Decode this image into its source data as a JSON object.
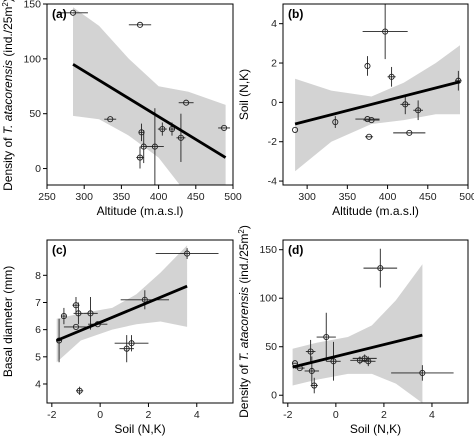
{
  "chart_data": [
    {
      "panel": "(a)",
      "type": "scatter",
      "xlabel": "Altitude (m.a.s.l)",
      "ylabel_parts": [
        "Density of ",
        "T. atacorensis",
        " (ind./25m",
        "2",
        ")"
      ],
      "xlim": [
        250,
        500
      ],
      "ylim": [
        -15,
        150
      ],
      "xticks": [
        250,
        300,
        350,
        400,
        450,
        500
      ],
      "yticks": [
        0,
        50,
        100,
        150
      ],
      "grid": false,
      "points": [
        {
          "x": 285,
          "y": 142,
          "xerr": 20,
          "yerr": 0
        },
        {
          "x": 375,
          "y": 131,
          "xerr": 15,
          "yerr": 0
        },
        {
          "x": 335,
          "y": 45,
          "xerr": 8,
          "yerr": 0
        },
        {
          "x": 437,
          "y": 60,
          "xerr": 10,
          "yerr": 0
        },
        {
          "x": 488,
          "y": 37,
          "xerr": 8,
          "yerr": 0
        },
        {
          "x": 375,
          "y": 10,
          "xerr": 5,
          "yerr": 10
        },
        {
          "x": 377,
          "y": 33,
          "xerr": 4,
          "yerr": 8
        },
        {
          "x": 380,
          "y": 20,
          "xerr": 4,
          "yerr": 15
        },
        {
          "x": 395,
          "y": 20,
          "xerr": 12,
          "yerr": 35
        },
        {
          "x": 405,
          "y": 36,
          "xerr": 6,
          "yerr": 6
        },
        {
          "x": 418,
          "y": 36,
          "xerr": 4,
          "yerr": 6
        },
        {
          "x": 430,
          "y": 28,
          "xerr": 6,
          "yerr": 22
        }
      ],
      "fit": {
        "x": [
          285,
          490
        ],
        "y": [
          95,
          10
        ]
      },
      "band": {
        "x": [
          285,
          320,
          360,
          400,
          440,
          490
        ],
        "upper": [
          147,
          130,
          100,
          75,
          70,
          58
        ],
        "lower": [
          48,
          45,
          30,
          10,
          -25,
          -40
        ]
      }
    },
    {
      "panel": "(b)",
      "type": "scatter",
      "xlabel": "Altitude (m.a.s.l)",
      "ylabel_parts": [
        "Soil (N,K)"
      ],
      "xlim": [
        270,
        500
      ],
      "ylim": [
        -4.2,
        5
      ],
      "xticks": [
        300,
        350,
        400,
        450,
        500
      ],
      "yticks": [
        -4,
        -2,
        0,
        2,
        4
      ],
      "grid": false,
      "points": [
        {
          "x": 285,
          "y": -1.4,
          "xerr": 0,
          "yerr": 0
        },
        {
          "x": 335,
          "y": -1.0,
          "xerr": 0,
          "yerr": 0.3
        },
        {
          "x": 375,
          "y": 1.85,
          "xerr": 0,
          "yerr": 0.5
        },
        {
          "x": 375,
          "y": -0.85,
          "xerr": 15,
          "yerr": 0
        },
        {
          "x": 377,
          "y": -1.75,
          "xerr": 5,
          "yerr": 0
        },
        {
          "x": 380,
          "y": -0.9,
          "xerr": 10,
          "yerr": 0
        },
        {
          "x": 397,
          "y": 3.6,
          "xerr": 28,
          "yerr": 1.4
        },
        {
          "x": 405,
          "y": 1.3,
          "xerr": 5,
          "yerr": 0.5
        },
        {
          "x": 422,
          "y": -0.1,
          "xerr": 6,
          "yerr": 0.5
        },
        {
          "x": 427,
          "y": -1.55,
          "xerr": 20,
          "yerr": 0
        },
        {
          "x": 438,
          "y": -0.4,
          "xerr": 6,
          "yerr": 0.5
        },
        {
          "x": 488,
          "y": 1.1,
          "xerr": 4,
          "yerr": 0.5
        }
      ],
      "fit": {
        "x": [
          285,
          490
        ],
        "y": [
          -1.1,
          1.05
        ]
      },
      "band": {
        "x": [
          285,
          330,
          380,
          420,
          460,
          490
        ],
        "upper": [
          1.2,
          0.6,
          0.3,
          1.0,
          2.0,
          2.9
        ],
        "lower": [
          -3.5,
          -2.0,
          -1.1,
          -0.9,
          -0.6,
          -0.6
        ]
      }
    },
    {
      "panel": "(c)",
      "type": "scatter",
      "xlabel": "Soil (N,K)",
      "ylabel_parts": [
        "Basal diameter (mm)"
      ],
      "xlim": [
        -2.2,
        5.5
      ],
      "ylim": [
        3.3,
        9.3
      ],
      "xticks": [
        -2,
        0,
        2,
        4
      ],
      "yticks": [
        4,
        5,
        6,
        7,
        8
      ],
      "grid": false,
      "points": [
        {
          "x": -1.7,
          "y": 5.6,
          "xerr": 0.1,
          "yerr": 0.8
        },
        {
          "x": -1.5,
          "y": 6.5,
          "xerr": 0.1,
          "yerr": 0.3
        },
        {
          "x": -1.0,
          "y": 6.9,
          "xerr": 0.15,
          "yerr": 0.3
        },
        {
          "x": -0.9,
          "y": 6.6,
          "xerr": 0.2,
          "yerr": 0.4
        },
        {
          "x": -1.0,
          "y": 6.1,
          "xerr": 0.5,
          "yerr": 0
        },
        {
          "x": -0.85,
          "y": 3.75,
          "xerr": 0.15,
          "yerr": 0.15
        },
        {
          "x": -0.4,
          "y": 6.6,
          "xerr": 0.3,
          "yerr": 0.6
        },
        {
          "x": -0.1,
          "y": 6.2,
          "xerr": 0.4,
          "yerr": 0
        },
        {
          "x": 1.1,
          "y": 5.3,
          "xerr": 0.3,
          "yerr": 0.5
        },
        {
          "x": 1.3,
          "y": 5.5,
          "xerr": 0.7,
          "yerr": 0.3
        },
        {
          "x": 1.85,
          "y": 7.1,
          "xerr": 1.0,
          "yerr": 0.35
        },
        {
          "x": 3.6,
          "y": 8.8,
          "xerr": 1.3,
          "yerr": 0.2
        }
      ],
      "fit": {
        "x": [
          -1.8,
          3.6
        ],
        "y": [
          5.6,
          7.6
        ]
      },
      "band": {
        "x": [
          -1.8,
          -0.8,
          0.5,
          1.5,
          2.5,
          3.6
        ],
        "upper": [
          6.4,
          6.6,
          6.8,
          7.3,
          8.1,
          9.1
        ],
        "lower": [
          4.8,
          5.6,
          6.0,
          6.2,
          6.3,
          6.1
        ]
      }
    },
    {
      "panel": "(d)",
      "type": "scatter",
      "xlabel": "Soil (N,K)",
      "ylabel_parts": [
        "Density of ",
        "T. atacorensis",
        " (ind./25m",
        "2",
        ")"
      ],
      "xlim": [
        -2.2,
        5.5
      ],
      "ylim": [
        -8,
        160
      ],
      "xticks": [
        -2,
        0,
        2,
        4
      ],
      "yticks": [
        0,
        50,
        100,
        150
      ],
      "grid": false,
      "points": [
        {
          "x": -1.7,
          "y": 33,
          "xerr": 0.1,
          "yerr": 0
        },
        {
          "x": -1.5,
          "y": 28,
          "xerr": 0.2,
          "yerr": 0
        },
        {
          "x": -1.05,
          "y": 45,
          "xerr": 0.2,
          "yerr": 12
        },
        {
          "x": -1.0,
          "y": 25,
          "xerr": 0.3,
          "yerr": 15
        },
        {
          "x": -0.9,
          "y": 10,
          "xerr": 0.15,
          "yerr": 8
        },
        {
          "x": -0.4,
          "y": 60,
          "xerr": 0.4,
          "yerr": 25
        },
        {
          "x": -0.1,
          "y": 35,
          "xerr": 0.3,
          "yerr": 20
        },
        {
          "x": 1.0,
          "y": 36,
          "xerr": 0.4,
          "yerr": 4
        },
        {
          "x": 1.2,
          "y": 38,
          "xerr": 0.5,
          "yerr": 4
        },
        {
          "x": 1.35,
          "y": 35,
          "xerr": 0.3,
          "yerr": 5
        },
        {
          "x": 1.85,
          "y": 131,
          "xerr": 0.7,
          "yerr": 20
        },
        {
          "x": 3.6,
          "y": 23,
          "xerr": 1.3,
          "yerr": 8
        }
      ],
      "fit": {
        "x": [
          -1.8,
          3.6
        ],
        "y": [
          29,
          62
        ]
      },
      "band": {
        "x": [
          -1.8,
          -0.8,
          0.5,
          1.5,
          2.5,
          3.6
        ],
        "upper": [
          48,
          54,
          60,
          72,
          98,
          135
        ],
        "lower": [
          10,
          16,
          22,
          22,
          12,
          -8
        ]
      }
    }
  ]
}
